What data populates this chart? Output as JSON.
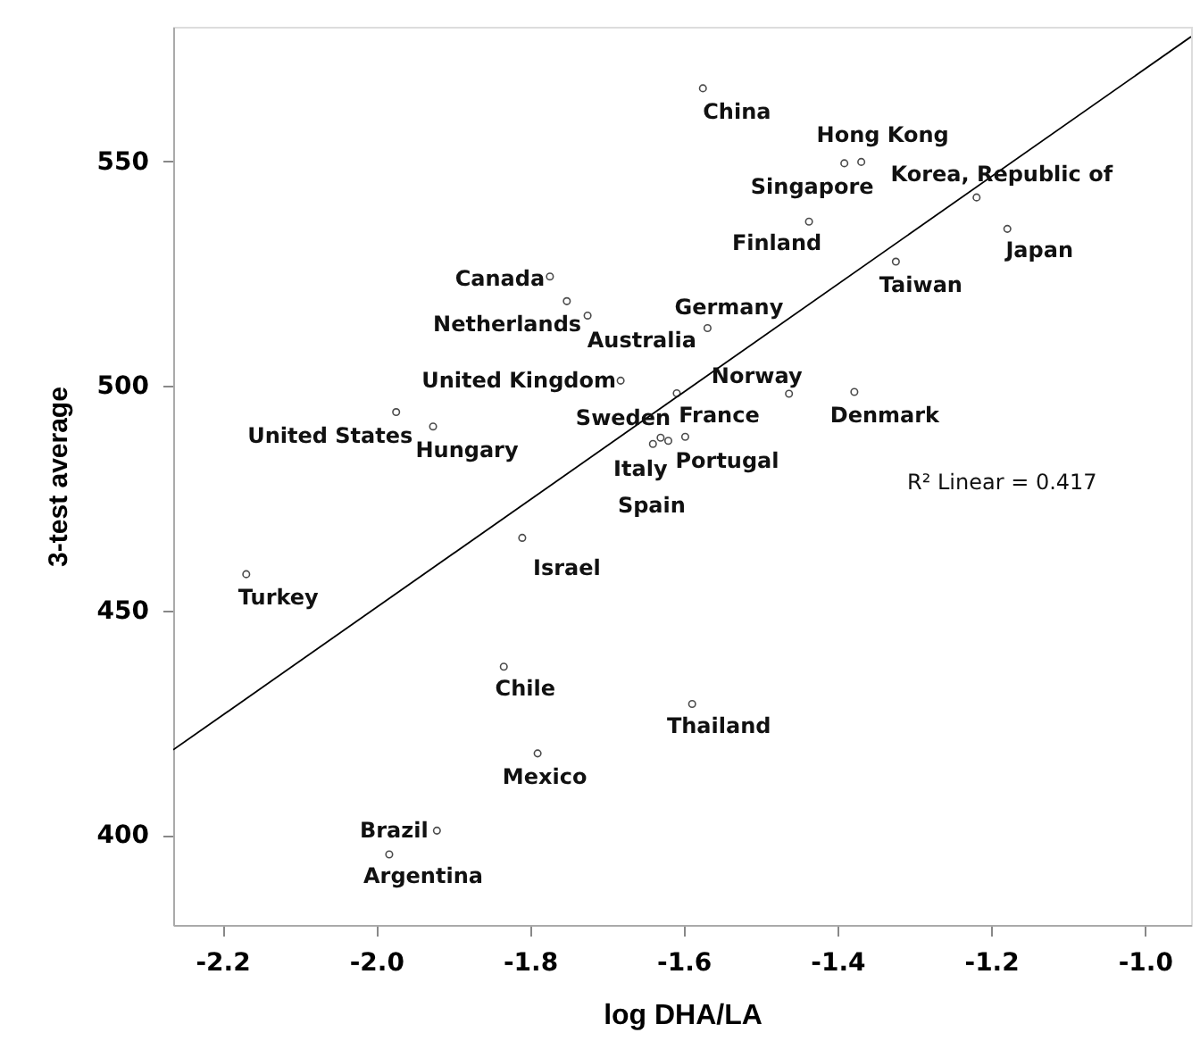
{
  "chart_data": {
    "type": "scatter",
    "xlabel": "log DHA/LA",
    "ylabel": "3-test average",
    "xlim": [
      -2.264,
      -0.94
    ],
    "ylim": [
      380,
      580
    ],
    "xticks": [
      -2.2,
      {
        "value": -2.0,
        "label": "-2.0"
      },
      -1.8,
      -1.6,
      -1.4,
      -1.2,
      {
        "value": -1.0,
        "label": "-1.0"
      }
    ],
    "yticks": [
      400,
      450,
      500,
      550
    ],
    "grid": false,
    "series": [
      {
        "type": "scatter",
        "color": "#000000",
        "marker": "circle",
        "x": [
          -1.575,
          -1.369,
          -1.391,
          -1.219,
          -1.179,
          -1.437,
          -1.324,
          -1.569,
          -1.463,
          -1.378,
          -1.609,
          -1.598,
          -1.64,
          -1.63,
          -1.62,
          -1.774,
          -1.725,
          -1.752,
          -1.682,
          -1.974,
          -1.926,
          -2.169,
          -1.81,
          -1.834,
          -1.79,
          -1.921,
          -1.983,
          -1.589
        ],
        "values": [
          566.3,
          549.9,
          549.6,
          542.0,
          535.0,
          536.6,
          527.7,
          512.9,
          498.3,
          498.7,
          498.4,
          488.7,
          487.1,
          488.5,
          487.8,
          524.4,
          515.7,
          518.9,
          501.2,
          494.2,
          491.0,
          458.1,
          466.2,
          437.5,
          418.2,
          401.0,
          395.7,
          429.2
        ]
      },
      {
        "type": "line",
        "color": "#000000",
        "line_style": "solid",
        "x": [
          -2.264,
          -0.94
        ],
        "values": [
          419.0,
          577.8
        ]
      }
    ],
    "annotations": [
      {
        "text": "China",
        "x": -1.575,
        "y": 566.3
      },
      {
        "text": "Hong Kong",
        "x": -1.369,
        "y": 549.9
      },
      {
        "text": "Singapore",
        "x": -1.391,
        "y": 549.6
      },
      {
        "text": "Korea, Republic of",
        "x": -1.219,
        "y": 542.0
      },
      {
        "text": "Japan",
        "x": -1.179,
        "y": 535.0
      },
      {
        "text": "Finland",
        "x": -1.437,
        "y": 536.6
      },
      {
        "text": "Taiwan",
        "x": -1.324,
        "y": 527.7
      },
      {
        "text": "Germany",
        "x": -1.569,
        "y": 512.9
      },
      {
        "text": "Norway",
        "x": -1.463,
        "y": 498.3
      },
      {
        "text": "Denmark",
        "x": -1.378,
        "y": 498.7
      },
      {
        "text": "Sweden",
        "x": -1.609,
        "y": 498.4
      },
      {
        "text": "France",
        "x": -1.598,
        "y": 488.7
      },
      {
        "text": "Italy",
        "x": -1.64,
        "y": 487.1
      },
      {
        "text": "Spain",
        "x": -1.63,
        "y": 488.5
      },
      {
        "text": "Portugal",
        "x": -1.62,
        "y": 487.8
      },
      {
        "text": "Canada",
        "x": -1.774,
        "y": 524.4
      },
      {
        "text": "Netherlands",
        "x": -1.725,
        "y": 515.7
      },
      {
        "text": "Australia",
        "x": -1.752,
        "y": 518.9
      },
      {
        "text": "United Kingdom",
        "x": -1.682,
        "y": 501.2
      },
      {
        "text": "United States",
        "x": -1.974,
        "y": 494.2
      },
      {
        "text": "Hungary",
        "x": -1.926,
        "y": 491.0
      },
      {
        "text": "Turkey",
        "x": -2.169,
        "y": 458.1
      },
      {
        "text": "Israel",
        "x": -1.81,
        "y": 466.2
      },
      {
        "text": "Chile",
        "x": -1.834,
        "y": 437.5
      },
      {
        "text": "Mexico",
        "x": -1.79,
        "y": 418.2
      },
      {
        "text": "Brazil",
        "x": -1.921,
        "y": 401.0
      },
      {
        "text": "Argentina",
        "x": -1.983,
        "y": 395.7
      },
      {
        "text": "Thailand",
        "x": -1.589,
        "y": 429.2
      },
      "R² Linear = 0.417"
    ]
  }
}
